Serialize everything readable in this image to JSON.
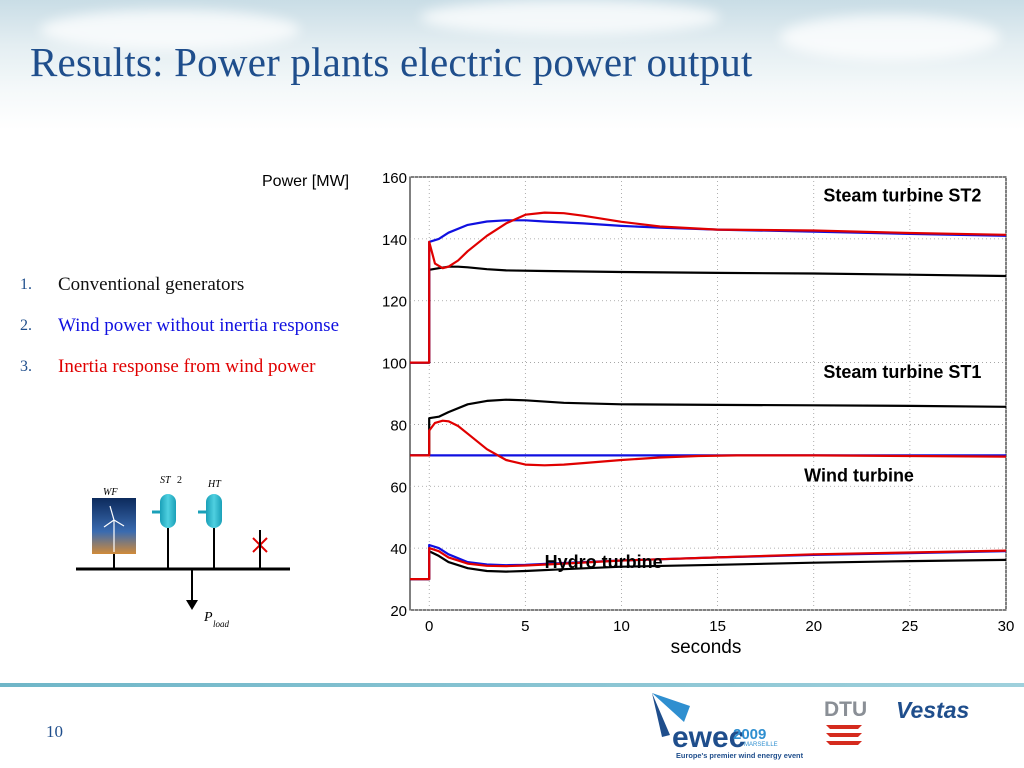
{
  "slide": {
    "title": "Results: Power plants electric power output",
    "page_number": "10",
    "accent_color": "#1f4e8c"
  },
  "legend_list": [
    {
      "number": "1.",
      "text": "Conventional generators",
      "color": "#111111"
    },
    {
      "number": "2.",
      "text": "Wind power without inertia response",
      "color": "#1010e0"
    },
    {
      "number": "3.",
      "text": "Inertia response from wind power",
      "color": "#e00000"
    }
  ],
  "diagram": {
    "wf_label": "WF",
    "st_label": "ST",
    "st_sub": "2",
    "ht_label": "HT",
    "p_label": "P",
    "p_sub": "load"
  },
  "chart_data": {
    "type": "line",
    "ylabel": "Power [MW]",
    "xlabel": "seconds",
    "xlim": [
      -1,
      30
    ],
    "ylim": [
      20,
      160
    ],
    "xticks": [
      0,
      5,
      10,
      15,
      20,
      25,
      30
    ],
    "yticks": [
      20,
      40,
      60,
      80,
      100,
      120,
      140,
      160
    ],
    "grid": "dotted",
    "annotations": [
      {
        "text": "Steam turbine ST2",
        "x": 20.5,
        "y": 152
      },
      {
        "text": "Steam turbine ST1",
        "x": 20.5,
        "y": 95
      },
      {
        "text": "Wind turbine",
        "x": 19.5,
        "y": 61.5
      },
      {
        "text": "Hydro turbine",
        "x": 6,
        "y": 33.5
      }
    ],
    "series": [
      {
        "group": "Steam turbine ST2",
        "color": "#000000",
        "x": [
          -1,
          0,
          0,
          0.5,
          1,
          1.5,
          2,
          3,
          4,
          6,
          10,
          15,
          20,
          25,
          30
        ],
        "y": [
          100,
          100,
          130,
          130.5,
          131,
          131,
          130.8,
          130.2,
          129.8,
          129.6,
          129.3,
          129,
          128.8,
          128.4,
          128
        ]
      },
      {
        "group": "Steam turbine ST2",
        "color": "#1010e0",
        "x": [
          -1,
          0,
          0,
          0.5,
          1,
          2,
          3,
          4,
          5,
          6,
          8,
          10,
          12,
          15,
          20,
          25,
          30
        ],
        "y": [
          100,
          100,
          139,
          140,
          142,
          144.5,
          145.6,
          146,
          146,
          145.6,
          145,
          144.2,
          143.6,
          143,
          142.3,
          141.6,
          141
        ]
      },
      {
        "group": "Steam turbine ST2",
        "color": "#e00000",
        "x": [
          -1,
          0,
          0,
          0.3,
          0.7,
          1,
          1.5,
          2,
          3,
          4,
          5,
          6,
          7,
          8,
          10,
          12,
          15,
          20,
          25,
          30
        ],
        "y": [
          100,
          100,
          139,
          132,
          130.5,
          131,
          133,
          136,
          141,
          145,
          147.8,
          148.5,
          148.3,
          147.5,
          145.5,
          144,
          143,
          142.7,
          141.9,
          141.3
        ]
      },
      {
        "group": "Steam turbine ST1",
        "color": "#000000",
        "x": [
          -1,
          0,
          0,
          0.5,
          1,
          2,
          3,
          4,
          5,
          7,
          10,
          15,
          20,
          25,
          30
        ],
        "y": [
          70,
          70,
          82,
          82.5,
          84,
          86.5,
          87.6,
          88,
          87.8,
          87,
          86.5,
          86.3,
          86.2,
          86,
          85.7
        ]
      },
      {
        "group": "Wind turbine",
        "color": "#1010e0",
        "x": [
          -1,
          30
        ],
        "y": [
          70,
          70
        ]
      },
      {
        "group": "Wind turbine",
        "color": "#e00000",
        "x": [
          -1,
          0,
          0,
          0.3,
          0.7,
          1,
          1.5,
          2,
          3,
          4,
          5,
          6,
          7,
          8,
          10,
          12,
          14,
          16,
          20,
          25,
          30
        ],
        "y": [
          70,
          70,
          78,
          80.5,
          81.2,
          81,
          79.5,
          77,
          72,
          68.5,
          67,
          66.8,
          67,
          67.5,
          68.5,
          69.3,
          69.8,
          70,
          70,
          69.8,
          69.6
        ]
      },
      {
        "group": "Hydro turbine",
        "color": "#000000",
        "x": [
          -1,
          0,
          0,
          0.5,
          1,
          2,
          3,
          4,
          5,
          7,
          10,
          15,
          20,
          25,
          30
        ],
        "y": [
          30,
          30,
          39,
          37.5,
          35.5,
          33.5,
          32.6,
          32.4,
          32.6,
          33.2,
          34,
          34.6,
          35.3,
          35.8,
          36.2
        ]
      },
      {
        "group": "Hydro turbine",
        "color": "#1010e0",
        "x": [
          -1,
          0,
          0,
          0.5,
          1,
          2,
          3,
          4,
          5,
          7,
          10,
          15,
          20,
          25,
          30
        ],
        "y": [
          30,
          30,
          41,
          40,
          38,
          35.5,
          34.7,
          34.5,
          34.6,
          35.2,
          36,
          37,
          37.8,
          38.4,
          39
        ]
      },
      {
        "group": "Hydro turbine",
        "color": "#e00000",
        "x": [
          -1,
          0,
          0,
          0.5,
          1,
          2,
          3,
          4,
          5,
          7,
          10,
          15,
          20,
          25,
          30
        ],
        "y": [
          30,
          30,
          40,
          39,
          37,
          35,
          34.3,
          34.2,
          34.4,
          35,
          36,
          37,
          38,
          38.6,
          39.2
        ]
      }
    ]
  },
  "logos": {
    "ewec_main": "ewec",
    "ewec_year": "2009",
    "ewec_city": "MARSEILLE",
    "ewec_tagline": "Europe's premier wind energy event",
    "dtu": "DTU",
    "vestas": "Vestas"
  }
}
